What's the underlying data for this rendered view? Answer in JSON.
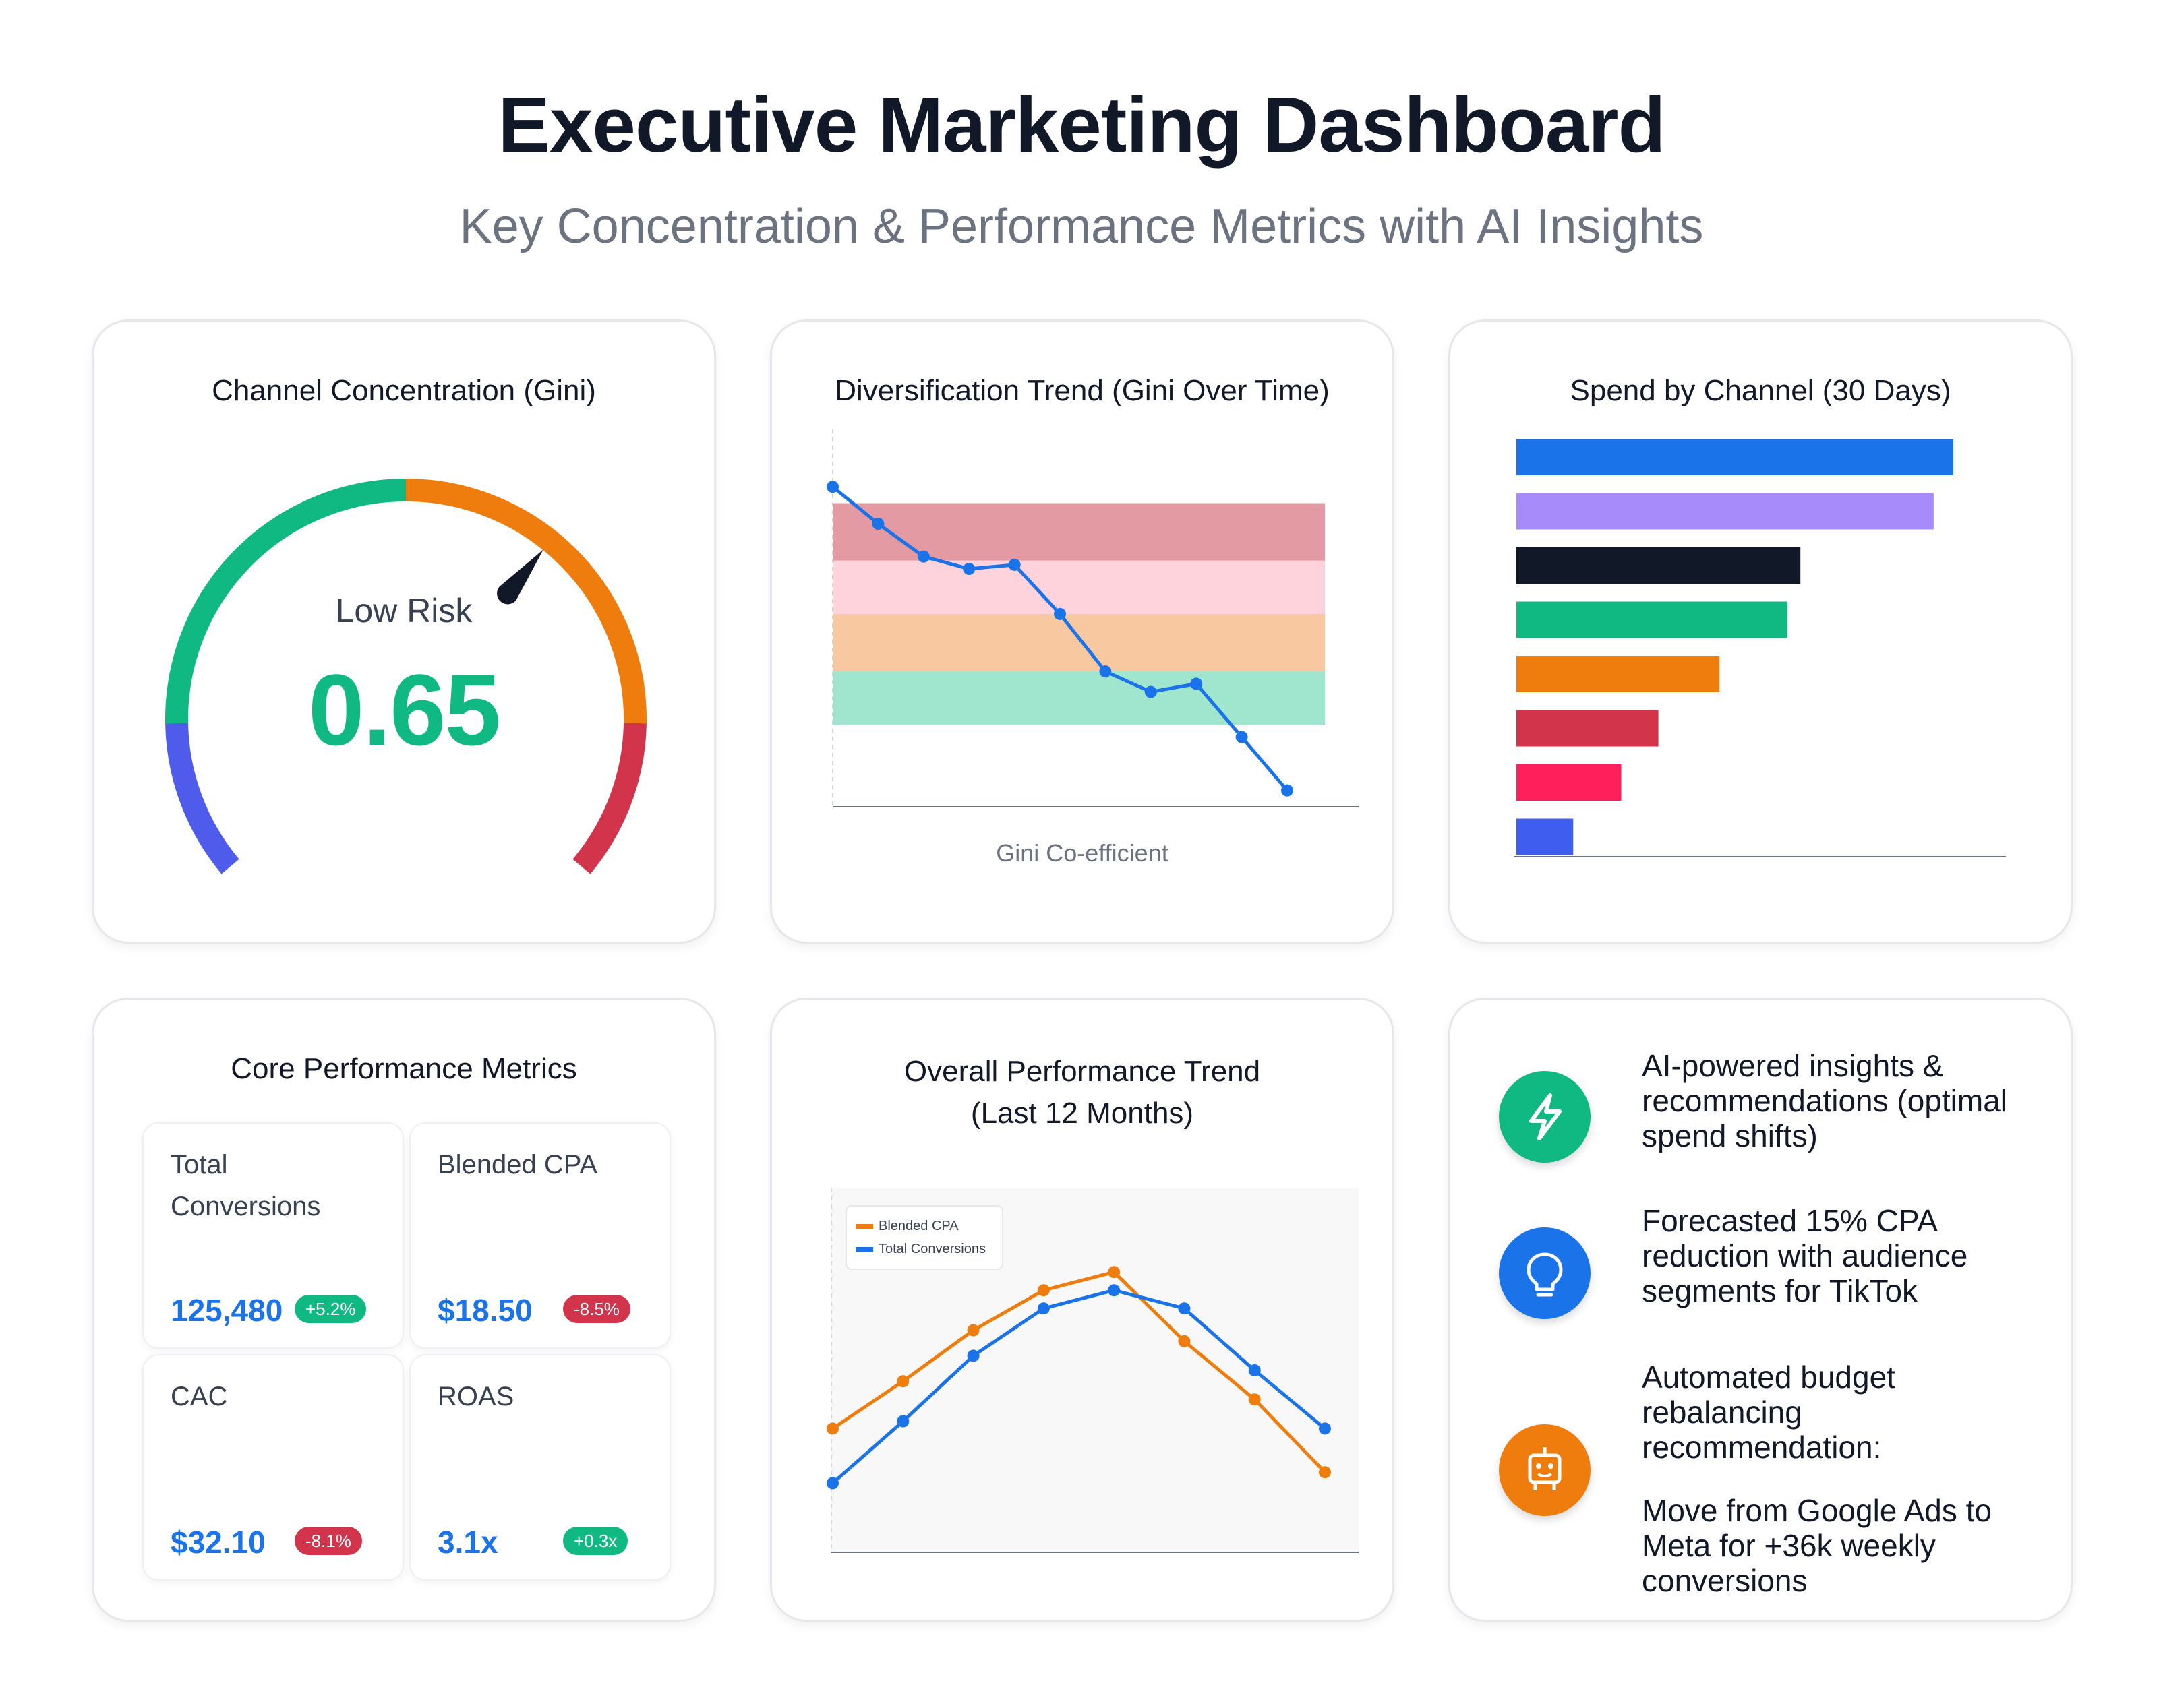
{
  "header": {
    "title": "Executive Marketing Dashboard",
    "subtitle": "Key Concentration & Performance Metrics with AI Insights"
  },
  "gauge": {
    "title": "Channel Concentration (Gini)",
    "status": "Low Risk",
    "value": "0.65"
  },
  "diversification": {
    "title": "Diversification Trend (Gini Over Time)",
    "caption": "Gini Co-efficient"
  },
  "spend": {
    "title": "Spend by Channel (30 Days)"
  },
  "metrics": {
    "title": "Core Performance Metrics",
    "cards": [
      {
        "label": "Total Conversions",
        "value": "125,480",
        "change": "+5.2%"
      },
      {
        "label": "Blended CPA",
        "value": "$18.50",
        "change": "-8.5%"
      },
      {
        "label": "CAC",
        "value": "$32.10",
        "change": "-8.1%"
      },
      {
        "label": "ROAS",
        "value": "3.1x",
        "change": "+0.3x"
      }
    ]
  },
  "trend": {
    "title_line1": "Overall Performance Trend",
    "title_line2": "(Last 12 Months)"
  },
  "insights": [
    {
      "icon": "lightning-icon",
      "color": "#10b981",
      "text": "AI-powered insights & recommendations (optimal spend shifts)"
    },
    {
      "icon": "lightbulb-icon",
      "color": "#1a73e8",
      "text": "Forecasted 15% CPA reduction with audience segments for TikTok"
    },
    {
      "icon": "robot-icon",
      "color": "#ef7d0d",
      "text_line1": "Automated budget rebalancing recommendation:",
      "text_line2": "Move from Google Ads to Meta for +36k weekly conversions"
    }
  ],
  "chart_data": [
    {
      "type": "gauge",
      "title": "Channel Concentration (Gini)",
      "value": 0.65,
      "range": [
        0,
        1
      ],
      "status": "Low Risk",
      "bands": [
        {
          "from": 0.0,
          "to": 0.15,
          "color": "#4f5bea"
        },
        {
          "from": 0.15,
          "to": 0.5,
          "color": "#10b981"
        },
        {
          "from": 0.5,
          "to": 0.85,
          "color": "#ef7d0d"
        },
        {
          "from": 0.85,
          "to": 1.0,
          "color": "#d1344b"
        }
      ]
    },
    {
      "type": "line",
      "title": "Diversification Trend (Gini Over Time)",
      "xlabel": "Gini Co-efficient",
      "ylim": [
        0,
        0.92
      ],
      "series": [
        {
          "name": "Gini",
          "color": "#1a73e8",
          "x": [
            0,
            1,
            2,
            3,
            4,
            5,
            6,
            7,
            8,
            9,
            10
          ],
          "values": [
            0.78,
            0.69,
            0.61,
            0.58,
            0.59,
            0.47,
            0.33,
            0.28,
            0.3,
            0.17,
            0.04
          ]
        }
      ],
      "bands": [
        {
          "from": 0.6,
          "to": 0.74,
          "color": "#e49aa2"
        },
        {
          "from": 0.47,
          "to": 0.6,
          "color": "#fed3db"
        },
        {
          "from": 0.33,
          "to": 0.47,
          "color": "#f8c9a0"
        },
        {
          "from": 0.2,
          "to": 0.33,
          "color": "#a0e6cf"
        }
      ]
    },
    {
      "type": "bar",
      "orientation": "horizontal",
      "title": "Spend by Channel (30 Days)",
      "values": [
        100,
        95.5,
        65,
        62,
        46.5,
        32.5,
        24,
        13
      ],
      "colors": [
        "#1a73e8",
        "#a78bfa",
        "#111827",
        "#10b981",
        "#ef7d0d",
        "#d1344b",
        "#ff1f5a",
        "#3f5ef0"
      ],
      "xlim": [
        0,
        100
      ]
    },
    {
      "type": "line",
      "title": "Overall Performance Trend (Last 12 Months)",
      "x": [
        1,
        2,
        3,
        4,
        5,
        6,
        7,
        8
      ],
      "ylim": [
        0,
        100
      ],
      "legend": "top-left",
      "series": [
        {
          "name": "Blended CPA",
          "color": "#ef7d0d",
          "values": [
            34,
            47,
            61,
            72,
            77,
            58,
            42,
            22
          ]
        },
        {
          "name": "Total Conversions",
          "color": "#1a73e8",
          "values": [
            19,
            36,
            54,
            67,
            72,
            67,
            50,
            34
          ]
        }
      ]
    }
  ]
}
